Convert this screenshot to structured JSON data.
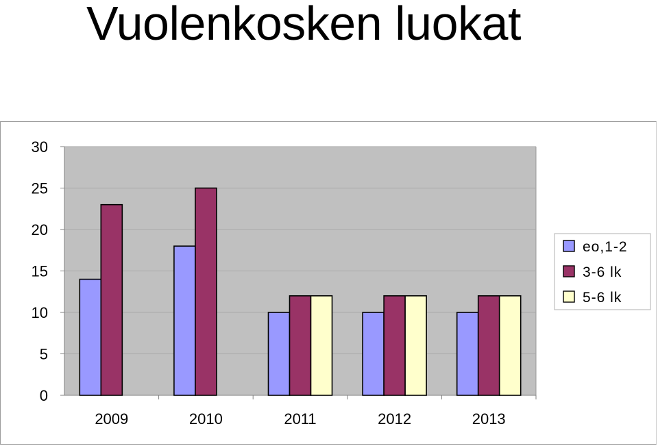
{
  "page": {
    "title": "Vuolenkosken luokat"
  },
  "chart_data": {
    "type": "bar",
    "title": "",
    "xlabel": "",
    "ylabel": "",
    "categories": [
      "2009",
      "2010",
      "2011",
      "2012",
      "2013"
    ],
    "series": [
      {
        "name": "eo,1-2",
        "values": [
          14,
          18,
          10,
          10,
          10
        ],
        "color": "#9999ff"
      },
      {
        "name": "3-6 lk",
        "values": [
          23,
          25,
          12,
          12,
          12
        ],
        "color": "#993366"
      },
      {
        "name": "5-6 lk",
        "values": [
          null,
          null,
          12,
          12,
          12
        ],
        "color": "#ffffcc"
      }
    ],
    "ylim": [
      0,
      30
    ],
    "yticks": [
      0,
      5,
      10,
      15,
      20,
      25,
      30
    ],
    "grid": true,
    "plot_background": "#c0c0c0",
    "legend_position": "right"
  }
}
